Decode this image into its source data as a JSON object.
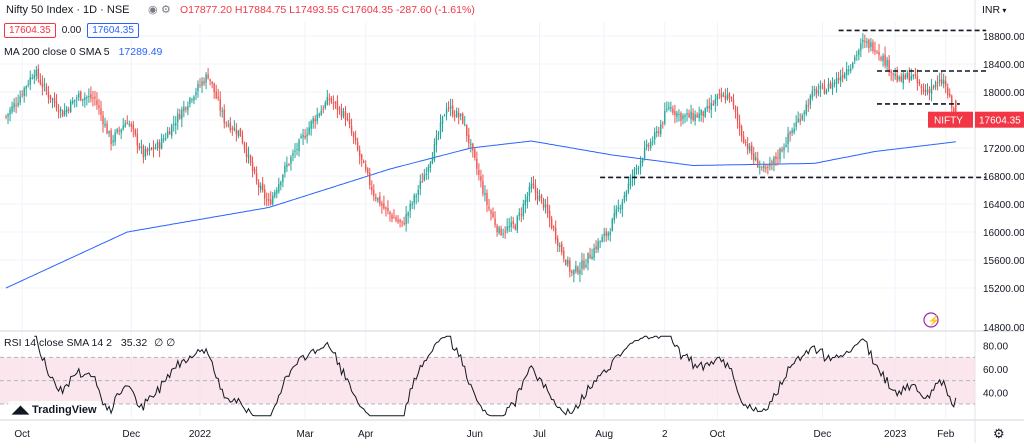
{
  "header": {
    "symbol": "Nifty 50 Index · 1D · NSE",
    "ohlc": "O17877.20 H17884.75 L17493.55 C17604.35 -287.60 (-1.61%)",
    "price_sell": "17604.35",
    "spread": "0.00",
    "price_buy": "17604.35",
    "currency": "INR"
  },
  "ma_legend": {
    "label": "MA 200 close 0 SMA 5",
    "value": "17289.49"
  },
  "rsi_legend": {
    "label": "RSI 14 close SMA 14 2",
    "value": "35.32",
    "extra": "∅ ∅"
  },
  "last_price_label": {
    "name": "NIFTY",
    "value": "17604.35"
  },
  "branding": "TradingView",
  "colors": {
    "up": "#26a69a",
    "down": "#ef5350",
    "ma": "#2962ff",
    "rsi_band": "#f8dbe4",
    "label": "#f23645"
  },
  "chart_data": [
    {
      "type": "candlestick",
      "title": "Nifty 50 Index · 1D · NSE",
      "xlabel": "",
      "ylabel": "",
      "ylim": [
        14600,
        19000
      ],
      "yticks": [
        15200,
        15600,
        16000,
        16400,
        16800,
        17200,
        17600,
        18000,
        18400,
        18800
      ],
      "ytick_labels": [
        "15200.00",
        "15600.00",
        "16000.00",
        "16400.00",
        "16800.00",
        "17200.00",
        "17600.00",
        "18000.00",
        "18400.00",
        "18800.00"
      ],
      "ytick_partial": "14800.00",
      "xtick_labels": [
        "Oct",
        "Dec",
        "2022",
        "Mar",
        "Apr",
        "Jun",
        "Jul",
        "Aug",
        "2",
        "Oct",
        "Dec",
        "2023",
        "Feb"
      ],
      "close_anchors": [
        [
          0,
          17650
        ],
        [
          6,
          17900
        ],
        [
          14,
          18300
        ],
        [
          20,
          18000
        ],
        [
          28,
          17700
        ],
        [
          36,
          17950
        ],
        [
          44,
          17900
        ],
        [
          52,
          17300
        ],
        [
          60,
          17600
        ],
        [
          68,
          17100
        ],
        [
          76,
          17250
        ],
        [
          84,
          17600
        ],
        [
          92,
          17950
        ],
        [
          100,
          18250
        ],
        [
          108,
          17600
        ],
        [
          116,
          17400
        ],
        [
          124,
          16700
        ],
        [
          130,
          16400
        ],
        [
          138,
          16900
        ],
        [
          144,
          17200
        ],
        [
          152,
          17600
        ],
        [
          160,
          17900
        ],
        [
          168,
          17650
        ],
        [
          176,
          17000
        ],
        [
          182,
          16550
        ],
        [
          188,
          16300
        ],
        [
          196,
          16100
        ],
        [
          204,
          16600
        ],
        [
          212,
          17200
        ],
        [
          218,
          17800
        ],
        [
          226,
          17600
        ],
        [
          232,
          17000
        ],
        [
          238,
          16400
        ],
        [
          244,
          16000
        ],
        [
          252,
          16100
        ],
        [
          260,
          16650
        ],
        [
          266,
          16400
        ],
        [
          274,
          15800
        ],
        [
          280,
          15400
        ],
        [
          286,
          15550
        ],
        [
          292,
          15800
        ],
        [
          298,
          16000
        ],
        [
          304,
          16400
        ],
        [
          310,
          16800
        ],
        [
          316,
          17150
        ],
        [
          322,
          17400
        ],
        [
          328,
          17800
        ],
        [
          334,
          17650
        ],
        [
          340,
          17650
        ],
        [
          346,
          17700
        ],
        [
          352,
          17900
        ],
        [
          358,
          17950
        ],
        [
          364,
          17400
        ],
        [
          370,
          17050
        ],
        [
          376,
          16850
        ],
        [
          382,
          17100
        ],
        [
          388,
          17400
        ],
        [
          394,
          17700
        ],
        [
          400,
          18000
        ],
        [
          406,
          18050
        ],
        [
          412,
          18200
        ],
        [
          418,
          18400
        ],
        [
          424,
          18700
        ],
        [
          430,
          18650
        ],
        [
          436,
          18400
        ],
        [
          442,
          18150
        ],
        [
          448,
          18250
        ],
        [
          454,
          18000
        ],
        [
          460,
          18100
        ],
        [
          464,
          18150
        ],
        [
          470,
          17604
        ]
      ],
      "ma200_anchors": [
        [
          0,
          15200
        ],
        [
          60,
          16000
        ],
        [
          130,
          16350
        ],
        [
          190,
          16900
        ],
        [
          230,
          17200
        ],
        [
          260,
          17300
        ],
        [
          300,
          17100
        ],
        [
          340,
          16950
        ],
        [
          400,
          16980
        ],
        [
          430,
          17150
        ],
        [
          470,
          17289
        ]
      ],
      "horizontal_lines": [
        {
          "from": 412,
          "to": 485,
          "price": 18880
        },
        {
          "from": 431,
          "to": 485,
          "price": 18300
        },
        {
          "from": 431,
          "to": 472,
          "price": 17830
        },
        {
          "from": 294,
          "to": 485,
          "price": 16780
        }
      ],
      "last_price": 17604.35,
      "ma200_last": 17289.49
    },
    {
      "type": "line",
      "title": "RSI 14 close SMA 14 2",
      "xlabel": "",
      "ylabel": "",
      "ylim": [
        18,
        90
      ],
      "yticks": [
        40,
        60,
        80
      ],
      "ytick_labels": [
        "40.00",
        "60.00",
        "80.00"
      ],
      "band": [
        30,
        70
      ],
      "midline": 50,
      "last_value": 35.32
    }
  ]
}
